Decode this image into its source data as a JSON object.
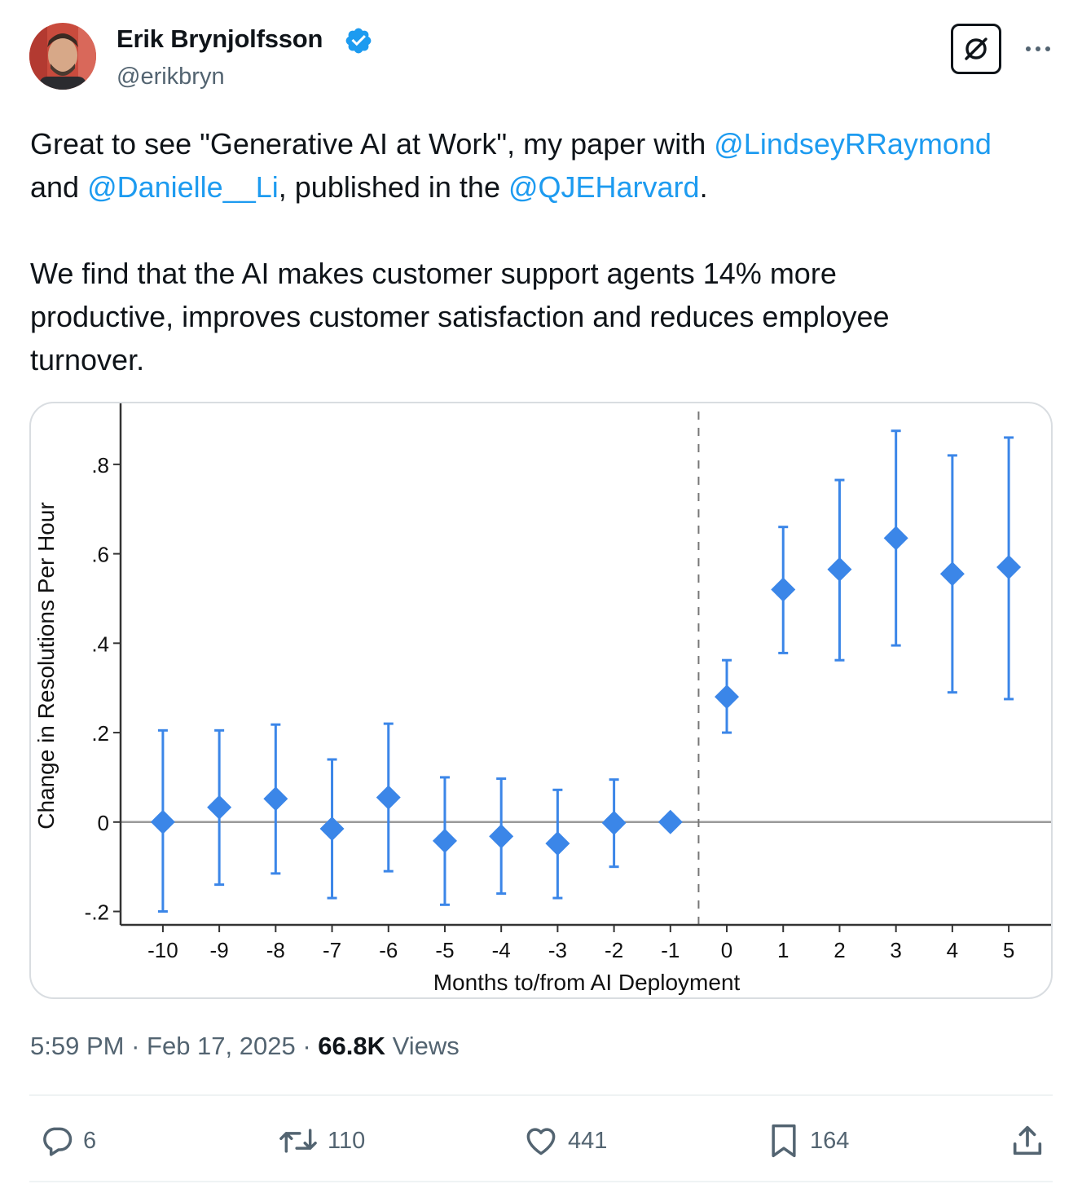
{
  "author": {
    "name": "Erik Brynjolfsson",
    "handle": "@erikbryn",
    "verified": true
  },
  "tweet": {
    "segments": [
      {
        "text": "Great to see \"Generative AI at Work\", my paper with ",
        "type": "text"
      },
      {
        "text": "@LindseyRRaymond",
        "type": "mention"
      },
      {
        "text": "\nand ",
        "type": "text"
      },
      {
        "text": "@Danielle__Li",
        "type": "mention"
      },
      {
        "text": ", published in the ",
        "type": "text"
      },
      {
        "text": "@QJEHarvard",
        "type": "mention"
      },
      {
        "text": ".\n\nWe find that the AI makes customer support agents 14% more\nproductive, improves customer satisfaction and reduces employee\nturnover.",
        "type": "text"
      }
    ]
  },
  "chart_data": {
    "type": "scatter",
    "xlabel": "Months to/from AI Deployment",
    "ylabel": "Change in Resolutions Per Hour",
    "x": [
      -10,
      -9,
      -8,
      -7,
      -6,
      -5,
      -4,
      -3,
      -2,
      -1,
      0,
      1,
      2,
      3,
      4,
      5
    ],
    "values": [
      0.0,
      0.033,
      0.052,
      -0.015,
      0.055,
      -0.042,
      -0.032,
      -0.048,
      -0.002,
      0.0,
      0.28,
      0.52,
      0.565,
      0.635,
      0.555,
      0.57
    ],
    "ci_low": [
      -0.2,
      -0.14,
      -0.115,
      -0.17,
      -0.11,
      -0.185,
      -0.16,
      -0.17,
      -0.1,
      null,
      0.2,
      0.378,
      0.362,
      0.395,
      0.29,
      0.275
    ],
    "ci_high": [
      0.205,
      0.205,
      0.218,
      0.14,
      0.22,
      0.1,
      0.097,
      0.072,
      0.095,
      null,
      0.362,
      0.66,
      0.765,
      0.875,
      0.82,
      0.86
    ],
    "yticks": [
      -0.2,
      0,
      0.2,
      0.4,
      0.6,
      0.8
    ],
    "ytick_labels": [
      "-.2",
      "0",
      ".2",
      ".4",
      ".6",
      ".8"
    ],
    "xtick_labels": [
      "-10",
      "-9",
      "-8",
      "-7",
      "-6",
      "-5",
      "-4",
      "-3",
      "-2",
      "-1",
      "0",
      "1",
      "2",
      "3",
      "4",
      "5"
    ],
    "ylim": [
      -0.23,
      0.9
    ],
    "xlim": [
      -10.75,
      5.75
    ],
    "reference_line_x": -0.5,
    "reference_line_y": 0,
    "marker_color": "#3b86e8",
    "grid": false
  },
  "meta": {
    "time": "5:59 PM",
    "date": "Feb 17, 2025",
    "views_count": "66.8K",
    "views_label": "Views"
  },
  "actions": {
    "replies": "6",
    "reposts": "110",
    "likes": "441",
    "bookmarks": "164"
  },
  "icons": [
    "verified-badge-icon",
    "grok-icon",
    "more-icon",
    "reply-icon",
    "repost-icon",
    "like-icon",
    "bookmark-icon",
    "share-icon"
  ],
  "colors": {
    "accent": "#1d9bf0",
    "secondary_text": "#536471"
  }
}
